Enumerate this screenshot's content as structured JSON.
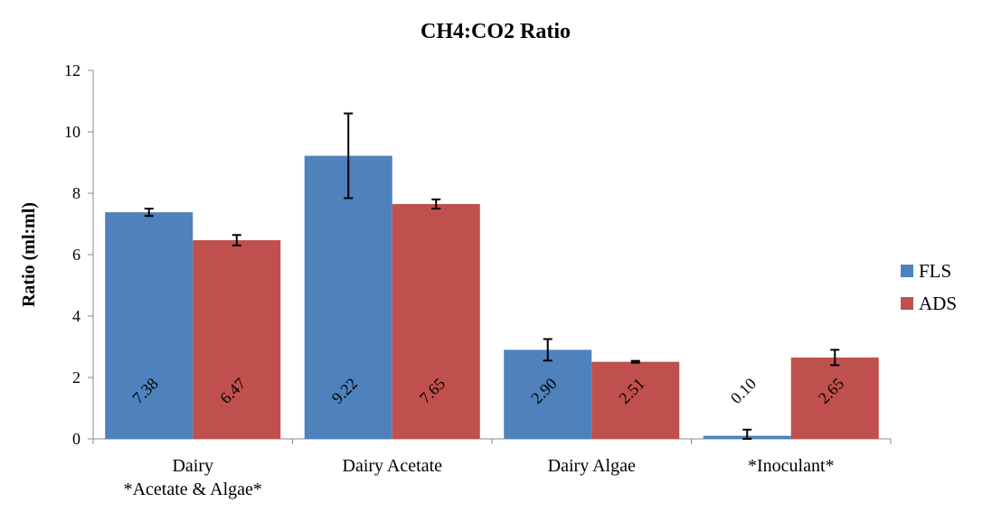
{
  "chart_data": {
    "type": "bar",
    "title": "CH4:CO2 Ratio",
    "xlabel": "",
    "ylabel": "Ratio (ml:ml)",
    "ylim": [
      0,
      12
    ],
    "yticks": [
      0,
      2,
      4,
      6,
      8,
      10,
      12
    ],
    "grid": false,
    "legend_position": "right",
    "categories": [
      [
        "Dairy",
        "*Acetate & Algae*"
      ],
      [
        "Dairy Acetate"
      ],
      [
        "Dairy Algae"
      ],
      [
        "*Inoculant*"
      ]
    ],
    "series": [
      {
        "name": "FLS",
        "color": "#4F81BD",
        "values": [
          7.38,
          9.22,
          2.9,
          0.1
        ],
        "labels": [
          "7.38",
          "9.22",
          "2.90",
          "0.10"
        ],
        "error": [
          0.12,
          1.38,
          0.35,
          0.2
        ]
      },
      {
        "name": "ADS",
        "color": "#C0504D",
        "values": [
          6.47,
          7.65,
          2.51,
          2.65
        ],
        "labels": [
          "6.47",
          "7.65",
          "2.51",
          "2.65"
        ],
        "error": [
          0.17,
          0.15,
          0.03,
          0.25
        ]
      }
    ]
  }
}
